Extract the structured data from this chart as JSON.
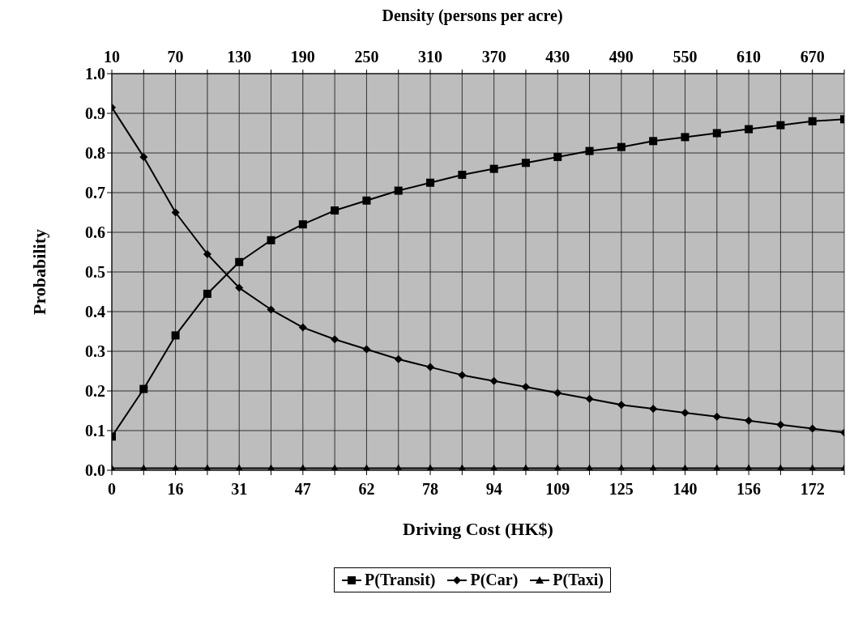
{
  "chart_data": {
    "type": "line",
    "xlabel": "Driving Cost (HK$)",
    "x2label": "Density (persons per acre)",
    "ylabel": "Probability",
    "x": [
      0,
      7.8,
      15.6,
      23.4,
      31.2,
      39,
      46.8,
      54.6,
      62.4,
      70.2,
      78,
      85.8,
      93.6,
      101.4,
      109.2,
      117,
      124.8,
      132.6,
      140.4,
      148.2,
      156,
      163.8,
      171.6,
      179.4
    ],
    "series": [
      {
        "name": "P(Transit)",
        "color": "#000000",
        "marker": "square",
        "values": [
          0.085,
          0.205,
          0.34,
          0.445,
          0.525,
          0.58,
          0.62,
          0.655,
          0.68,
          0.705,
          0.725,
          0.745,
          0.76,
          0.775,
          0.79,
          0.805,
          0.815,
          0.83,
          0.84,
          0.85,
          0.86,
          0.87,
          0.88,
          0.885
        ]
      },
      {
        "name": "P(Car)",
        "color": "#000000",
        "marker": "diamond",
        "values": [
          0.915,
          0.79,
          0.65,
          0.545,
          0.46,
          0.405,
          0.36,
          0.33,
          0.305,
          0.28,
          0.26,
          0.24,
          0.225,
          0.21,
          0.195,
          0.18,
          0.165,
          0.155,
          0.145,
          0.135,
          0.125,
          0.115,
          0.105,
          0.095
        ]
      },
      {
        "name": "P(Taxi)",
        "color": "#000000",
        "marker": "triangle",
        "values": [
          0.005,
          0.005,
          0.005,
          0.005,
          0.005,
          0.005,
          0.005,
          0.005,
          0.005,
          0.005,
          0.005,
          0.005,
          0.005,
          0.005,
          0.005,
          0.005,
          0.005,
          0.005,
          0.005,
          0.005,
          0.005,
          0.005,
          0.005,
          0.005
        ]
      }
    ],
    "xlim": [
      0,
      179.4
    ],
    "xticks": [
      0,
      {
        "value": 7.8,
        "label": null
      },
      {
        "value": 15.6,
        "label": "16"
      },
      {
        "value": 23.4,
        "label": null
      },
      {
        "value": 31.2,
        "label": "31"
      },
      {
        "value": 39,
        "label": null
      },
      {
        "value": 46.8,
        "label": "47"
      },
      {
        "value": 54.6,
        "label": null
      },
      {
        "value": 62.4,
        "label": "62"
      },
      {
        "value": 70.2,
        "label": null
      },
      {
        "value": 78,
        "label": "78"
      },
      {
        "value": 85.8,
        "label": null
      },
      {
        "value": 93.6,
        "label": "94"
      },
      {
        "value": 101.4,
        "label": null
      },
      {
        "value": 109.2,
        "label": "109"
      },
      {
        "value": 117,
        "label": null
      },
      {
        "value": 124.8,
        "label": "125"
      },
      {
        "value": 132.6,
        "label": null
      },
      {
        "value": 140.4,
        "label": "140"
      },
      {
        "value": 148.2,
        "label": null
      },
      {
        "value": 156,
        "label": "156"
      },
      {
        "value": 163.8,
        "label": null
      },
      {
        "value": 171.6,
        "label": "172"
      },
      {
        "value": 179.4,
        "label": null
      }
    ],
    "x2lim": [
      10,
      700
    ],
    "x2ticks": [
      10,
      {
        "value": 40,
        "label": null
      },
      70,
      {
        "value": 100,
        "label": null
      },
      130,
      {
        "value": 160,
        "label": null
      },
      190,
      {
        "value": 220,
        "label": null
      },
      250,
      {
        "value": 280,
        "label": null
      },
      310,
      {
        "value": 340,
        "label": null
      },
      370,
      {
        "value": 400,
        "label": null
      },
      430,
      {
        "value": 460,
        "label": null
      },
      490,
      {
        "value": 520,
        "label": null
      },
      550,
      {
        "value": 580,
        "label": null
      },
      610,
      {
        "value": 640,
        "label": null
      },
      670,
      {
        "value": 700,
        "label": null
      }
    ],
    "ylim": [
      0,
      1
    ],
    "yticks": [
      {
        "value": 0,
        "label": "0.0"
      },
      {
        "value": 0.1,
        "label": "0.1"
      },
      {
        "value": 0.2,
        "label": "0.2"
      },
      {
        "value": 0.3,
        "label": "0.3"
      },
      {
        "value": 0.4,
        "label": "0.4"
      },
      {
        "value": 0.5,
        "label": "0.5"
      },
      {
        "value": 0.6,
        "label": "0.6"
      },
      {
        "value": 0.7,
        "label": "0.7"
      },
      {
        "value": 0.8,
        "label": "0.8"
      },
      {
        "value": 0.9,
        "label": "0.9"
      },
      {
        "value": 1,
        "label": "1.0"
      }
    ],
    "grid": true,
    "legend": "bottom",
    "line_style": "solid"
  }
}
